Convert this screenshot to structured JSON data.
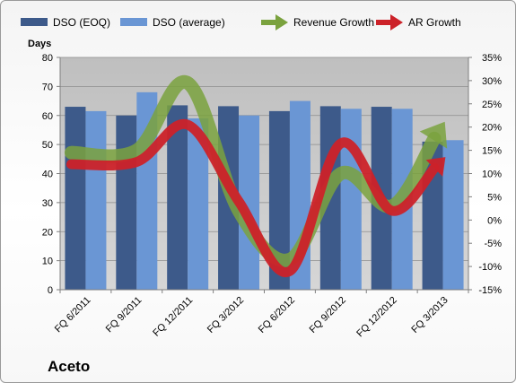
{
  "chart_data": {
    "type": "bar",
    "title": "Aceto",
    "ylabel": "Days",
    "ylim": [
      0,
      80
    ],
    "y2lim": [
      -15,
      35
    ],
    "y_ticks": [
      "0",
      "10",
      "20",
      "30",
      "40",
      "50",
      "60",
      "70",
      "80"
    ],
    "y2_ticks": [
      "-15%",
      "-10%",
      "-5%",
      "0%",
      "5%",
      "10%",
      "15%",
      "20%",
      "25%",
      "30%",
      "35%"
    ],
    "categories": [
      "FQ 6/2011",
      "FQ 9/2011",
      "FQ 12/2011",
      "FQ 3/2012",
      "FQ 6/2012",
      "FQ 9/2012",
      "FQ 12/2012",
      "FQ 3/2013"
    ],
    "series": [
      {
        "name": "DSO (EOQ)",
        "kind": "bar",
        "axis": "left",
        "color": "#3d5a8a",
        "values": [
          63,
          60,
          63.5,
          63.2,
          61.5,
          63.2,
          63,
          51
        ]
      },
      {
        "name": "DSO (average)",
        "kind": "bar",
        "axis": "left",
        "color": "#6a96d4",
        "values": [
          61.5,
          68,
          59,
          60,
          65,
          62.3,
          62.3,
          51.5
        ]
      },
      {
        "name": "Revenue Growth",
        "kind": "line",
        "axis": "right",
        "color": "#7aa23e",
        "values": [
          14.5,
          15,
          29.5,
          2,
          -8.5,
          10,
          3,
          20.5
        ]
      },
      {
        "name": "AR Growth",
        "kind": "line",
        "axis": "right",
        "color": "#cc2229",
        "values": [
          12,
          12.5,
          20.5,
          4,
          -11,
          16.5,
          2,
          13
        ]
      }
    ],
    "grid": true,
    "legend_position": "top"
  }
}
